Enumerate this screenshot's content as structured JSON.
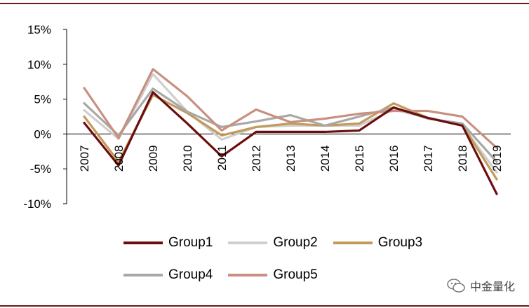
{
  "chart_data": {
    "type": "line",
    "categories": [
      "2007",
      "2008",
      "2009",
      "2010",
      "2011",
      "2012",
      "2013",
      "2014",
      "2015",
      "2016",
      "2017",
      "2018",
      "2019"
    ],
    "yticks": [
      "15%",
      "10%",
      "5%",
      "0%",
      "-5%",
      "-10%"
    ],
    "ytick_values": [
      15,
      10,
      5,
      0,
      -5,
      -10
    ],
    "ylim": [
      -10,
      15
    ],
    "series": [
      {
        "name": "Group1",
        "color": "#6b0e0e",
        "values": [
          1.6,
          -4.5,
          6.0,
          1.5,
          -3.2,
          0.3,
          0.3,
          0.3,
          0.5,
          3.8,
          2.3,
          1.2,
          -8.6
        ]
      },
      {
        "name": "Group2",
        "color": "#cfcfcf",
        "values": [
          3.4,
          -0.7,
          8.6,
          3.2,
          -0.8,
          1.0,
          1.2,
          1.2,
          1.2,
          3.5,
          2.3,
          1.2,
          -5.5
        ]
      },
      {
        "name": "Group3",
        "color": "#c49a5a",
        "values": [
          2.5,
          -4.0,
          5.6,
          3.0,
          -0.2,
          1.0,
          1.5,
          1.2,
          1.5,
          4.4,
          2.3,
          1.3,
          -6.5
        ]
      },
      {
        "name": "Group4",
        "color": "#a8a8a8",
        "values": [
          4.4,
          -0.2,
          6.5,
          3.2,
          1.0,
          1.8,
          2.7,
          1.2,
          2.5,
          3.8,
          2.2,
          1.5,
          -4.0
        ]
      },
      {
        "name": "Group5",
        "color": "#c89080",
        "values": [
          6.6,
          -0.6,
          9.3,
          5.4,
          0.5,
          3.5,
          1.7,
          2.2,
          2.9,
          3.3,
          3.3,
          2.5,
          -2.0
        ]
      }
    ]
  },
  "legend": {
    "row1": [
      {
        "name": "Group1",
        "color": "#6b0e0e"
      },
      {
        "name": "Group2",
        "color": "#cfcfcf"
      },
      {
        "name": "Group3",
        "color": "#c49a5a"
      }
    ],
    "row2": [
      {
        "name": "Group4",
        "color": "#a8a8a8"
      },
      {
        "name": "Group5",
        "color": "#c89080"
      }
    ]
  },
  "watermark": {
    "text": "中金量化",
    "icon": "wechat-icon"
  }
}
